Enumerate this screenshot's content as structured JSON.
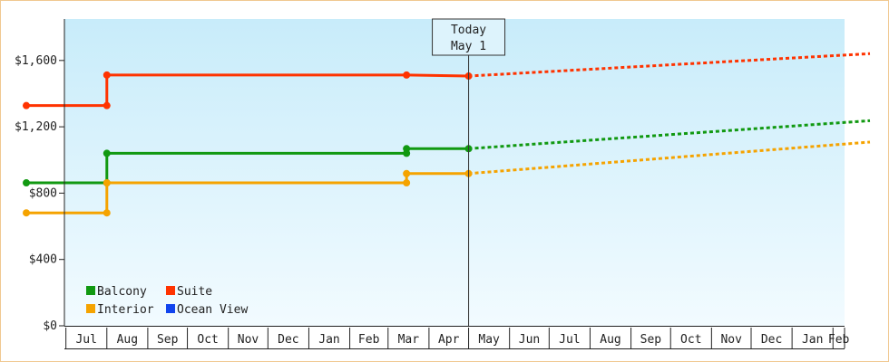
{
  "chart_data": {
    "type": "line",
    "title": "",
    "xlabel": "",
    "ylabel": "",
    "ylim": [
      0,
      1850
    ],
    "y_ticks": [
      {
        "value": 0,
        "label": "$0"
      },
      {
        "value": 400,
        "label": "$400"
      },
      {
        "value": 800,
        "label": "$800"
      },
      {
        "value": 1200,
        "label": "$1,200"
      },
      {
        "value": 1600,
        "label": "$1,600"
      }
    ],
    "x_range": [
      "2023-06-01",
      "2024-03-01"
    ],
    "x_months": [
      {
        "start": "2023-06-01",
        "label": ""
      },
      {
        "start": "2023-07-01",
        "label": "Jul"
      },
      {
        "start": "2023-08-01",
        "label": "Aug"
      },
      {
        "start": "2023-09-01",
        "label": "Sep"
      },
      {
        "start": "2023-10-01",
        "label": "Oct"
      },
      {
        "start": "2023-11-01",
        "label": "Nov"
      },
      {
        "start": "2023-12-01",
        "label": "Dec"
      },
      {
        "start": "2024-01-01",
        "label": "Jan"
      },
      {
        "start": "2024-02-01",
        "label": "Feb"
      },
      {
        "start": "2024-03-01",
        "label": "Mar"
      },
      {
        "start": "2024-04-01",
        "label": "Apr"
      },
      {
        "start": "2024-05-01",
        "label": "May"
      },
      {
        "start": "2024-06-01",
        "label": "Jun"
      },
      {
        "start": "2024-07-01",
        "label": "Jul"
      },
      {
        "start": "2024-08-01",
        "label": "Aug"
      },
      {
        "start": "2024-09-01",
        "label": "Sep"
      },
      {
        "start": "2024-10-01",
        "label": "Oct"
      },
      {
        "start": "2024-11-01",
        "label": "Nov"
      },
      {
        "start": "2024-12-01",
        "label": "Dec"
      },
      {
        "start": "2025-01-01",
        "label": "Jan"
      },
      {
        "start": "2025-02-01",
        "label": "Feb"
      },
      {
        "start": "2025-03-01",
        "label": ""
      }
    ],
    "today": {
      "line1": "Today",
      "line2": "May 1",
      "date": "2024-05-01"
    },
    "grid": false,
    "legend_position": "bottom-left",
    "series": [
      {
        "name": "Balcony",
        "color": "#119911",
        "points": [
          {
            "date": "2023-06-01",
            "value": 862
          },
          {
            "date": "2023-08-01",
            "value": 862
          },
          {
            "date": "2023-08-01",
            "value": 1040
          },
          {
            "date": "2024-03-15",
            "value": 1040
          },
          {
            "date": "2024-03-15",
            "value": 1068
          },
          {
            "date": "2024-05-01",
            "value": 1068
          }
        ],
        "forecast": [
          {
            "date": "2024-05-01",
            "value": 1068
          },
          {
            "date": "2025-03-01",
            "value": 1237
          }
        ]
      },
      {
        "name": "Suite",
        "color": "#ff3300",
        "points": [
          {
            "date": "2023-06-01",
            "value": 1328
          },
          {
            "date": "2023-08-01",
            "value": 1328
          },
          {
            "date": "2023-08-01",
            "value": 1512
          },
          {
            "date": "2024-03-15",
            "value": 1512
          },
          {
            "date": "2024-05-01",
            "value": 1506
          }
        ],
        "forecast": [
          {
            "date": "2024-05-01",
            "value": 1506
          },
          {
            "date": "2025-03-01",
            "value": 1641
          }
        ]
      },
      {
        "name": "Interior",
        "color": "#f5a300",
        "points": [
          {
            "date": "2023-06-01",
            "value": 681
          },
          {
            "date": "2023-08-01",
            "value": 681
          },
          {
            "date": "2023-08-01",
            "value": 862
          },
          {
            "date": "2024-03-15",
            "value": 862
          },
          {
            "date": "2024-03-15",
            "value": 918
          },
          {
            "date": "2024-05-01",
            "value": 918
          }
        ],
        "forecast": [
          {
            "date": "2024-05-01",
            "value": 918
          },
          {
            "date": "2025-03-01",
            "value": 1108
          }
        ]
      },
      {
        "name": "Ocean View",
        "color": "#1144ee",
        "points": [],
        "forecast": []
      }
    ]
  }
}
